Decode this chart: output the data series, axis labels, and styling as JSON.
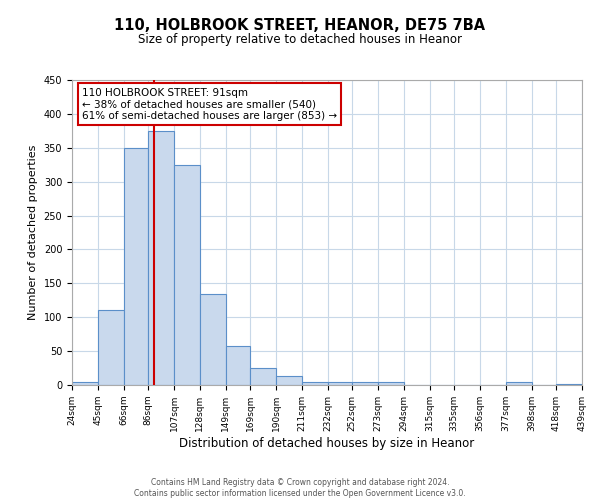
{
  "title": "110, HOLBROOK STREET, HEANOR, DE75 7BA",
  "subtitle": "Size of property relative to detached houses in Heanor",
  "xlabel": "Distribution of detached houses by size in Heanor",
  "ylabel": "Number of detached properties",
  "bin_edges": [
    24,
    45,
    66,
    86,
    107,
    128,
    149,
    169,
    190,
    211,
    232,
    252,
    273,
    294,
    315,
    335,
    356,
    377,
    398,
    418,
    439
  ],
  "bar_heights": [
    5,
    110,
    350,
    375,
    325,
    135,
    57,
    25,
    13,
    5,
    5,
    5,
    5,
    0,
    0,
    0,
    0,
    5,
    0,
    2
  ],
  "bar_color": "#c9d9ed",
  "bar_edge_color": "#5b8fc9",
  "property_size": 91,
  "vline_color": "#cc0000",
  "annotation_line1": "110 HOLBROOK STREET: 91sqm",
  "annotation_line2": "← 38% of detached houses are smaller (540)",
  "annotation_line3": "61% of semi-detached houses are larger (853) →",
  "annotation_box_color": "#ffffff",
  "annotation_box_edge": "#cc0000",
  "ylim": [
    0,
    450
  ],
  "tick_labels": [
    "24sqm",
    "45sqm",
    "66sqm",
    "86sqm",
    "107sqm",
    "128sqm",
    "149sqm",
    "169sqm",
    "190sqm",
    "211sqm",
    "232sqm",
    "252sqm",
    "273sqm",
    "294sqm",
    "315sqm",
    "335sqm",
    "356sqm",
    "377sqm",
    "398sqm",
    "418sqm",
    "439sqm"
  ],
  "footer_line1": "Contains HM Land Registry data © Crown copyright and database right 2024.",
  "footer_line2": "Contains public sector information licensed under the Open Government Licence v3.0.",
  "background_color": "#ffffff",
  "grid_color": "#c8d8e8",
  "title_fontsize": 10.5,
  "subtitle_fontsize": 8.5,
  "ylabel_fontsize": 8,
  "xlabel_fontsize": 8.5,
  "tick_fontsize": 6.5,
  "footer_fontsize": 5.5
}
